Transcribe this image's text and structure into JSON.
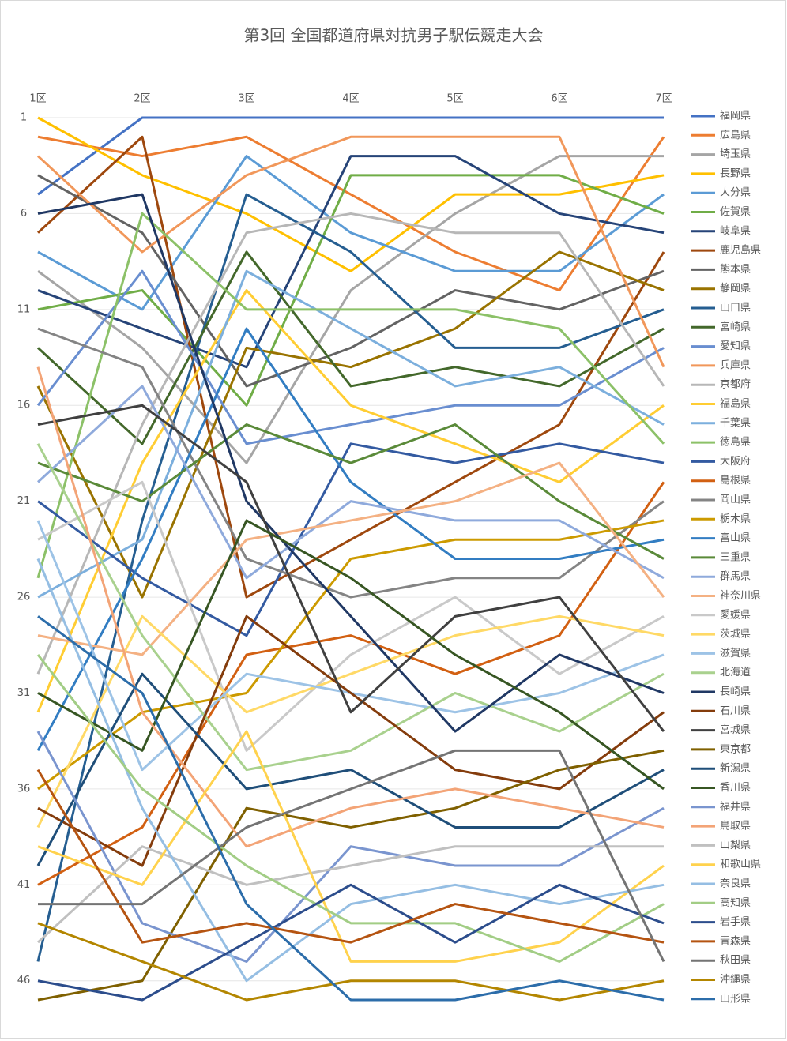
{
  "chart_data": {
    "type": "line",
    "title": "第3回 全国都道府県対抗男子駅伝競走大会",
    "categories": [
      "1区",
      "2区",
      "3区",
      "4区",
      "5区",
      "6区",
      "7区"
    ],
    "ylim": [
      1,
      47
    ],
    "y_inverted": true,
    "yticks": [
      1,
      6,
      11,
      16,
      21,
      26,
      31,
      36,
      41,
      46
    ],
    "grid": true,
    "legend": "right",
    "series": [
      {
        "name": "福岡県",
        "color": "#4472C4",
        "values": [
          5,
          1,
          1,
          1,
          1,
          1,
          1
        ]
      },
      {
        "name": "広島県",
        "color": "#ED7D31",
        "values": [
          2,
          3,
          2,
          5,
          8,
          10,
          2
        ]
      },
      {
        "name": "埼玉県",
        "color": "#A5A5A5",
        "values": [
          9,
          13,
          19,
          10,
          6,
          3,
          3
        ]
      },
      {
        "name": "長野県",
        "color": "#FFC000",
        "values": [
          1,
          4,
          6,
          9,
          5,
          5,
          4
        ]
      },
      {
        "name": "大分県",
        "color": "#5B9BD5",
        "values": [
          8,
          11,
          3,
          7,
          9,
          9,
          5
        ]
      },
      {
        "name": "佐賀県",
        "color": "#70AD47",
        "values": [
          11,
          10,
          16,
          4,
          4,
          4,
          6
        ]
      },
      {
        "name": "岐阜県",
        "color": "#264478",
        "values": [
          10,
          12,
          14,
          3,
          3,
          6,
          7
        ]
      },
      {
        "name": "鹿児島県",
        "color": "#9E480E",
        "values": [
          7,
          2,
          26,
          23,
          20,
          17,
          8
        ]
      },
      {
        "name": "熊本県",
        "color": "#636363",
        "values": [
          4,
          7,
          15,
          13,
          10,
          11,
          9
        ]
      },
      {
        "name": "静岡県",
        "color": "#997300",
        "values": [
          15,
          26,
          13,
          14,
          12,
          8,
          10
        ]
      },
      {
        "name": "山口県",
        "color": "#255E91",
        "values": [
          45,
          22,
          5,
          8,
          13,
          13,
          11
        ]
      },
      {
        "name": "宮崎県",
        "color": "#43682B",
        "values": [
          13,
          18,
          8,
          15,
          14,
          15,
          12
        ]
      },
      {
        "name": "愛知県",
        "color": "#698ED0",
        "values": [
          16,
          9,
          18,
          17,
          16,
          16,
          13
        ]
      },
      {
        "name": "兵庫県",
        "color": "#F1975A",
        "values": [
          3,
          8,
          4,
          2,
          2,
          2,
          14
        ]
      },
      {
        "name": "京都府",
        "color": "#B7B7B7",
        "values": [
          30,
          17,
          7,
          6,
          7,
          7,
          15
        ]
      },
      {
        "name": "福島県",
        "color": "#FFCD33",
        "values": [
          32,
          19,
          10,
          16,
          18,
          20,
          16
        ]
      },
      {
        "name": "千葉県",
        "color": "#7CAFDD",
        "values": [
          26,
          23,
          9,
          12,
          15,
          14,
          17
        ]
      },
      {
        "name": "徳島県",
        "color": "#8CC168",
        "values": [
          25,
          6,
          11,
          11,
          11,
          12,
          18
        ]
      },
      {
        "name": "大阪府",
        "color": "#335AA1",
        "values": [
          21,
          25,
          28,
          18,
          19,
          18,
          19
        ]
      },
      {
        "name": "島根県",
        "color": "#D26012",
        "values": [
          41,
          38,
          29,
          28,
          30,
          28,
          20
        ]
      },
      {
        "name": "岡山県",
        "color": "#848484",
        "values": [
          12,
          14,
          24,
          26,
          25,
          25,
          21
        ]
      },
      {
        "name": "栃木県",
        "color": "#CC9A00",
        "values": [
          36,
          32,
          31,
          24,
          23,
          23,
          22
        ]
      },
      {
        "name": "富山県",
        "color": "#327DC2",
        "values": [
          34,
          24,
          12,
          20,
          24,
          24,
          23
        ]
      },
      {
        "name": "三重県",
        "color": "#5A8A39",
        "values": [
          19,
          21,
          17,
          19,
          17,
          21,
          24
        ]
      },
      {
        "name": "群馬県",
        "color": "#8FAADC",
        "values": [
          20,
          15,
          25,
          21,
          22,
          22,
          25
        ]
      },
      {
        "name": "神奈川県",
        "color": "#F4B183",
        "values": [
          28,
          29,
          23,
          22,
          21,
          19,
          26
        ]
      },
      {
        "name": "愛媛県",
        "color": "#C9C9C9",
        "values": [
          23,
          20,
          34,
          29,
          26,
          30,
          27
        ]
      },
      {
        "name": "茨城県",
        "color": "#FFD966",
        "values": [
          38,
          27,
          32,
          30,
          28,
          27,
          28
        ]
      },
      {
        "name": "滋賀県",
        "color": "#9DC3E6",
        "values": [
          22,
          35,
          30,
          31,
          32,
          31,
          29
        ]
      },
      {
        "name": "北海道",
        "color": "#A9D18E",
        "values": [
          18,
          28,
          35,
          34,
          31,
          33,
          30
        ]
      },
      {
        "name": "長崎県",
        "color": "#203864",
        "values": [
          6,
          5,
          21,
          27,
          33,
          29,
          31
        ]
      },
      {
        "name": "石川県",
        "color": "#843C0C",
        "values": [
          37,
          40,
          27,
          31,
          35,
          36,
          32
        ]
      },
      {
        "name": "宮城県",
        "color": "#404040",
        "values": [
          17,
          16,
          20,
          32,
          27,
          26,
          33
        ]
      },
      {
        "name": "東京都",
        "color": "#7F6000",
        "values": [
          47,
          46,
          37,
          38,
          37,
          35,
          34
        ]
      },
      {
        "name": "新潟県",
        "color": "#1F4E79",
        "values": [
          40,
          30,
          36,
          35,
          38,
          38,
          35
        ]
      },
      {
        "name": "香川県",
        "color": "#375623",
        "values": [
          31,
          34,
          22,
          25,
          29,
          32,
          36
        ]
      },
      {
        "name": "福井県",
        "color": "#7A95CF",
        "values": [
          33,
          43,
          45,
          39,
          40,
          40,
          37
        ]
      },
      {
        "name": "鳥取県",
        "color": "#F3A477",
        "values": [
          14,
          32,
          39,
          37,
          36,
          37,
          38
        ]
      },
      {
        "name": "山梨県",
        "color": "#C0C0C0",
        "values": [
          44,
          39,
          41,
          40,
          39,
          39,
          39
        ]
      },
      {
        "name": "和歌山県",
        "color": "#FFD24D",
        "values": [
          39,
          41,
          33,
          45,
          45,
          44,
          40
        ]
      },
      {
        "name": "奈良県",
        "color": "#95BEE3",
        "values": [
          24,
          37,
          46,
          42,
          41,
          42,
          41
        ]
      },
      {
        "name": "高知県",
        "color": "#A2CD85",
        "values": [
          29,
          36,
          40,
          43,
          43,
          45,
          42
        ]
      },
      {
        "name": "岩手県",
        "color": "#2C4D8C",
        "values": [
          46,
          47,
          44,
          41,
          44,
          41,
          43
        ]
      },
      {
        "name": "青森県",
        "color": "#B55411",
        "values": [
          35,
          44,
          43,
          44,
          42,
          43,
          44
        ]
      },
      {
        "name": "秋田県",
        "color": "#747474",
        "values": [
          42,
          42,
          38,
          36,
          34,
          34,
          45
        ]
      },
      {
        "name": "沖縄県",
        "color": "#B38600",
        "values": [
          43,
          45,
          47,
          46,
          46,
          47,
          46
        ]
      },
      {
        "name": "山形県",
        "color": "#2C6DAA",
        "values": [
          27,
          31,
          42,
          47,
          47,
          46,
          47
        ]
      }
    ]
  }
}
